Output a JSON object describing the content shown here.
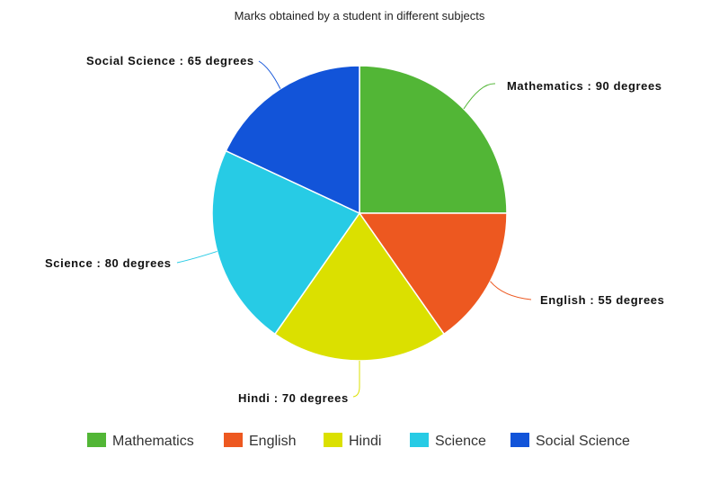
{
  "chart_data": {
    "type": "pie",
    "title": "Marks obtained by a student in different subjects",
    "unit": "degrees",
    "slices": [
      {
        "name": "Mathematics",
        "value": 90,
        "label": "Mathematics : 90 degrees",
        "color": "#52b636"
      },
      {
        "name": "English",
        "value": 55,
        "label": "English : 55 degrees",
        "color": "#ed5820"
      },
      {
        "name": "Hindi",
        "value": 70,
        "label": "Hindi : 70 degrees",
        "color": "#dbe000"
      },
      {
        "name": "Science",
        "value": 80,
        "label": "Science : 80 degrees",
        "color": "#27cbe5"
      },
      {
        "name": "Social Science",
        "value": 65,
        "label": "Social Science : 65 degrees",
        "color": "#1254d9"
      }
    ],
    "start_angle": "top, clockwise",
    "legend_position": "bottom"
  }
}
